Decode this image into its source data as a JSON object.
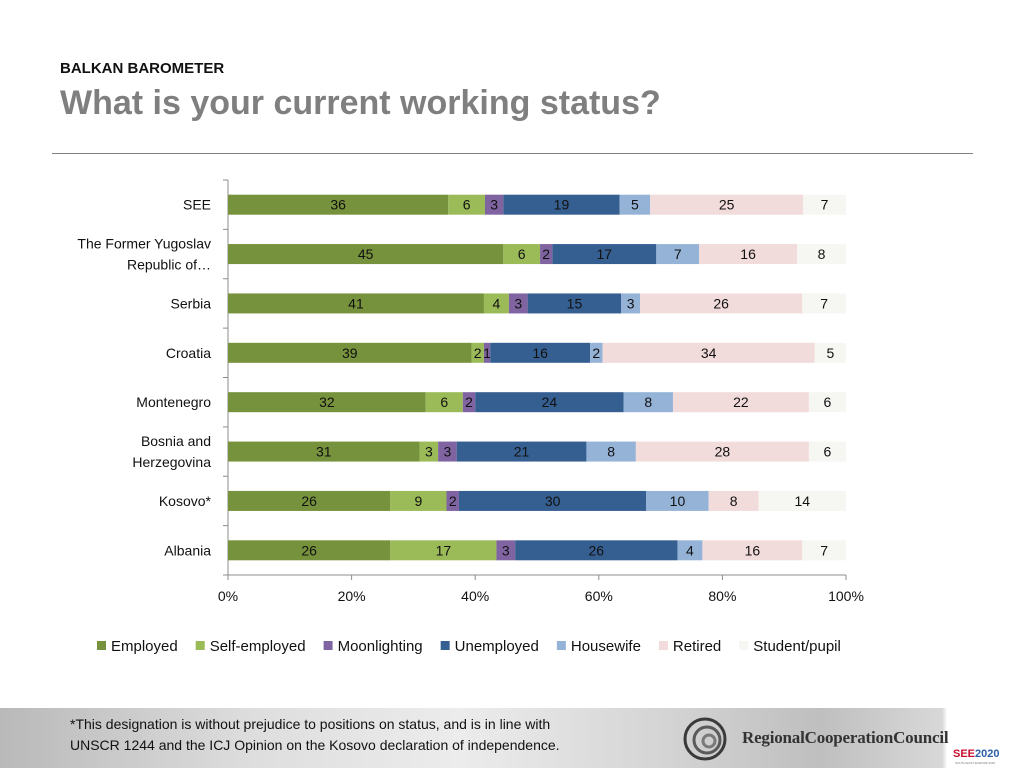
{
  "header": {
    "eyebrow": "BALKAN BAROMETER",
    "title": "What is your current working status?"
  },
  "chart_data": {
    "type": "bar",
    "orientation": "horizontal",
    "stacked": "percent",
    "categories": [
      [
        "SEE"
      ],
      [
        "The Former Yugoslav",
        "Republic of…"
      ],
      [
        "Serbia"
      ],
      [
        "Croatia"
      ],
      [
        "Montenegro"
      ],
      [
        "Bosnia and",
        "Herzegovina"
      ],
      [
        "Kosovo*"
      ],
      [
        "Albania"
      ]
    ],
    "series": [
      {
        "name": "Employed",
        "color": "#76923c",
        "values": [
          36,
          45,
          41,
          39,
          32,
          31,
          26,
          26
        ]
      },
      {
        "name": "Self-employed",
        "color": "#9bbb59",
        "values": [
          6,
          6,
          4,
          2,
          6,
          3,
          9,
          17
        ]
      },
      {
        "name": "Moonlighting",
        "color": "#8064a2",
        "values": [
          3,
          2,
          3,
          1,
          2,
          3,
          2,
          3
        ]
      },
      {
        "name": "Unemployed",
        "color": "#365f91",
        "values": [
          19,
          17,
          15,
          16,
          24,
          21,
          30,
          26
        ]
      },
      {
        "name": "Housewife",
        "color": "#95b3d7",
        "values": [
          5,
          7,
          3,
          2,
          8,
          8,
          10,
          4
        ]
      },
      {
        "name": "Retired",
        "color": "#f2dcdb",
        "values": [
          25,
          16,
          26,
          34,
          22,
          28,
          8,
          16
        ]
      },
      {
        "name": "Student/pupil",
        "color": "#f6f6f2",
        "values": [
          7,
          8,
          7,
          5,
          6,
          6,
          14,
          7
        ]
      }
    ],
    "xaxis": {
      "ticks": [
        "0%",
        "20%",
        "40%",
        "60%",
        "80%",
        "100%"
      ],
      "range": [
        0,
        100
      ]
    },
    "grid": false,
    "legend_position": "bottom",
    "data_labels": true
  },
  "footer": {
    "note_line1": "*This designation is without prejudice to positions on status, and is in line with",
    "note_line2": "UNSCR 1244 and the ICJ Opinion on the Kosovo declaration of independence.",
    "rcc_name": "RegionalCooperationCouncil",
    "see_prefix": "SEE",
    "see_year": "2020",
    "see_tagline": "SOUTH EAST EUROPE 2020"
  }
}
